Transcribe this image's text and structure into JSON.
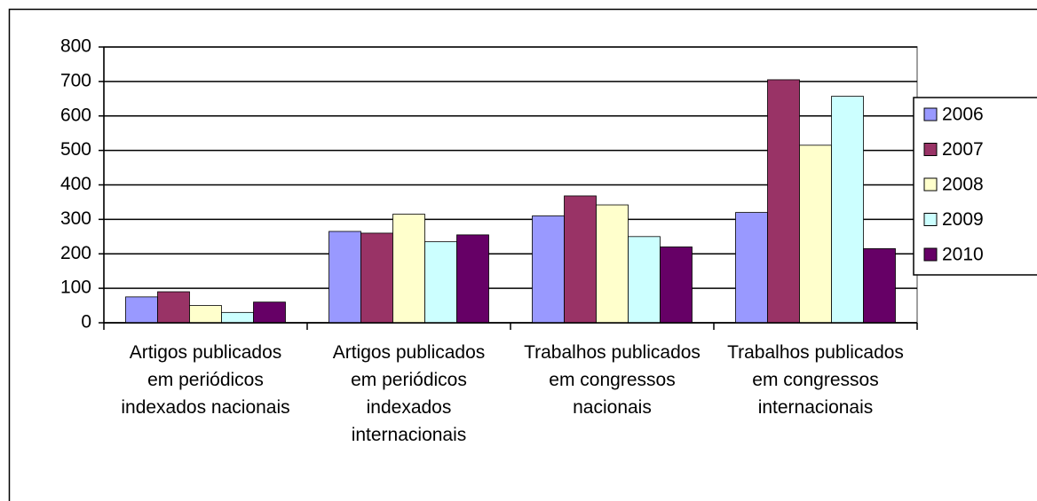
{
  "chart_data": {
    "type": "bar",
    "categories": [
      "Artigos publicados em periódicos indexados nacionais",
      "Artigos publicados em periódicos indexados internacionais",
      "Trabalhos publicados em congressos nacionais",
      "Trabalhos publicados em congressos internacionais"
    ],
    "series": [
      {
        "name": "2006",
        "color": "#9999ff",
        "values": [
          75,
          265,
          310,
          320
        ]
      },
      {
        "name": "2007",
        "color": "#993366",
        "values": [
          90,
          260,
          368,
          705
        ]
      },
      {
        "name": "2008",
        "color": "#ffffcc",
        "values": [
          50,
          315,
          342,
          515
        ]
      },
      {
        "name": "2009",
        "color": "#ccffff",
        "values": [
          30,
          235,
          250,
          657
        ]
      },
      {
        "name": "2010",
        "color": "#660066",
        "values": [
          60,
          255,
          220,
          215
        ]
      }
    ],
    "ylim": [
      0,
      800
    ],
    "yticks": [
      0,
      100,
      200,
      300,
      400,
      500,
      600,
      700,
      800
    ],
    "grid": true,
    "legend": "right"
  }
}
